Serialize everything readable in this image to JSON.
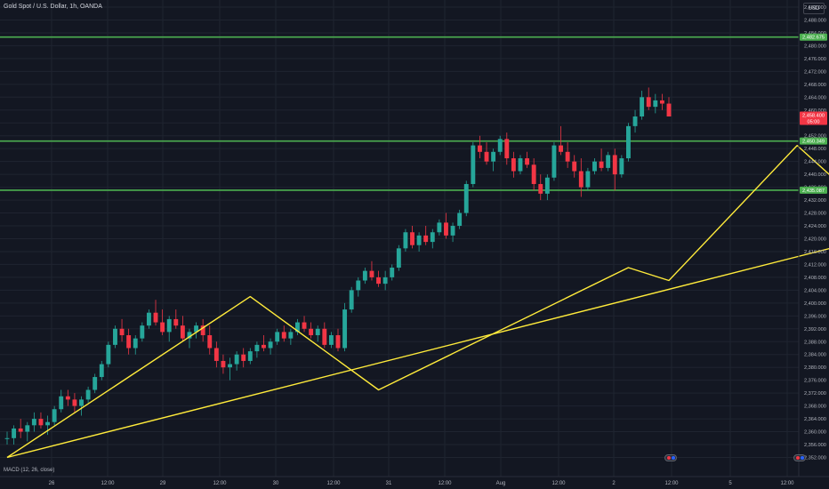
{
  "header": {
    "title": "Gold Spot / U.S. Dollar, 1h, OANDA",
    "currency": "USD"
  },
  "indicator": {
    "label": "MACD (12, 26, close)"
  },
  "colors": {
    "background": "#131722",
    "grid": "#1f2430",
    "up": "#26a69a",
    "down": "#f23645",
    "level_line": "#4caf50",
    "drawing": "#ffeb3b",
    "axis_text": "#b2b5be"
  },
  "chart_data": {
    "type": "candlestick",
    "symbol": "Gold Spot / U.S. Dollar",
    "interval": "1h",
    "source": "OANDA",
    "y_axis": {
      "position": "right",
      "ylim": [
        2349,
        2493
      ],
      "ticks": [
        "2,492.000",
        "2,488.000",
        "2,484.000",
        "2,480.000",
        "2,476.000",
        "2,472.000",
        "2,468.000",
        "2,464.000",
        "2,460.000",
        "2,456.000",
        "2,452.000",
        "2,448.000",
        "2,444.000",
        "2,440.000",
        "2,436.000",
        "2,432.000",
        "2,428.000",
        "2,424.000",
        "2,420.000",
        "2,416.000",
        "2,412.000",
        "2,408.000",
        "2,404.000",
        "2,400.000",
        "2,396.000",
        "2,392.000",
        "2,388.000",
        "2,384.000",
        "2,380.000",
        "2,376.000",
        "2,372.000",
        "2,368.000",
        "2,364.000",
        "2,360.000",
        "2,356.000",
        "2,352.000"
      ]
    },
    "x_axis": {
      "ticks": [
        "26",
        "12:00",
        "29",
        "12:00",
        "30",
        "12:00",
        "31",
        "12:00",
        "Aug",
        "12:00",
        "2",
        "12:00",
        "5",
        "12:00"
      ]
    },
    "price_labels": [
      {
        "value": 2482.675,
        "text": "2,482.675",
        "color": "#4caf50"
      },
      {
        "value": 2458.4,
        "text": "2,458.400",
        "color": "#f23645",
        "subtext": "05:00"
      },
      {
        "value": 2450.349,
        "text": "2,450.349",
        "color": "#4caf50"
      },
      {
        "value": 2435.087,
        "text": "2,435.087",
        "color": "#4caf50"
      }
    ],
    "horizontal_levels": [
      2482.675,
      2450.349,
      2435.087
    ],
    "candles": [
      [
        2358,
        2360,
        2356,
        2358
      ],
      [
        2358,
        2362,
        2356,
        2361
      ],
      [
        2361,
        2364,
        2358,
        2360
      ],
      [
        2360,
        2363,
        2357,
        2362
      ],
      [
        2362,
        2366,
        2360,
        2364
      ],
      [
        2364,
        2366,
        2361,
        2362
      ],
      [
        2362,
        2365,
        2359,
        2363
      ],
      [
        2363,
        2368,
        2362,
        2367
      ],
      [
        2367,
        2373,
        2366,
        2371
      ],
      [
        2371,
        2373,
        2368,
        2370
      ],
      [
        2370,
        2372,
        2366,
        2368
      ],
      [
        2368,
        2371,
        2365,
        2370
      ],
      [
        2370,
        2374,
        2369,
        2373
      ],
      [
        2373,
        2378,
        2372,
        2377
      ],
      [
        2377,
        2382,
        2376,
        2381
      ],
      [
        2381,
        2388,
        2380,
        2387
      ],
      [
        2387,
        2393,
        2386,
        2392
      ],
      [
        2392,
        2395,
        2388,
        2390
      ],
      [
        2390,
        2392,
        2384,
        2386
      ],
      [
        2386,
        2390,
        2384,
        2389
      ],
      [
        2389,
        2394,
        2388,
        2393
      ],
      [
        2393,
        2398,
        2392,
        2397
      ],
      [
        2397,
        2401,
        2393,
        2394
      ],
      [
        2394,
        2398,
        2390,
        2391
      ],
      [
        2391,
        2396,
        2388,
        2395
      ],
      [
        2395,
        2398,
        2392,
        2393
      ],
      [
        2393,
        2396,
        2388,
        2389
      ],
      [
        2389,
        2392,
        2386,
        2391
      ],
      [
        2391,
        2394,
        2389,
        2393
      ],
      [
        2393,
        2395,
        2388,
        2390
      ],
      [
        2390,
        2393,
        2384,
        2386
      ],
      [
        2386,
        2388,
        2380,
        2382
      ],
      [
        2382,
        2384,
        2378,
        2380
      ],
      [
        2380,
        2383,
        2376,
        2381
      ],
      [
        2381,
        2385,
        2379,
        2384
      ],
      [
        2384,
        2386,
        2380,
        2382
      ],
      [
        2382,
        2386,
        2381,
        2385
      ],
      [
        2385,
        2388,
        2383,
        2387
      ],
      [
        2387,
        2390,
        2385,
        2386
      ],
      [
        2386,
        2389,
        2384,
        2388
      ],
      [
        2388,
        2392,
        2387,
        2391
      ],
      [
        2391,
        2393,
        2388,
        2389
      ],
      [
        2389,
        2392,
        2387,
        2391
      ],
      [
        2391,
        2395,
        2390,
        2394
      ],
      [
        2394,
        2396,
        2391,
        2392
      ],
      [
        2392,
        2394,
        2389,
        2390
      ],
      [
        2390,
        2393,
        2388,
        2392
      ],
      [
        2392,
        2394,
        2386,
        2387
      ],
      [
        2387,
        2391,
        2386,
        2390
      ],
      [
        2390,
        2392,
        2385,
        2386
      ],
      [
        2386,
        2400,
        2385,
        2398
      ],
      [
        2398,
        2405,
        2397,
        2404
      ],
      [
        2404,
        2408,
        2402,
        2407
      ],
      [
        2407,
        2411,
        2406,
        2410
      ],
      [
        2410,
        2413,
        2407,
        2408
      ],
      [
        2408,
        2410,
        2405,
        2406
      ],
      [
        2406,
        2410,
        2404,
        2408
      ],
      [
        2408,
        2412,
        2407,
        2411
      ],
      [
        2411,
        2418,
        2410,
        2417
      ],
      [
        2417,
        2423,
        2416,
        2422
      ],
      [
        2422,
        2424,
        2417,
        2418
      ],
      [
        2418,
        2422,
        2416,
        2421
      ],
      [
        2421,
        2424,
        2418,
        2419
      ],
      [
        2419,
        2423,
        2417,
        2422
      ],
      [
        2422,
        2426,
        2421,
        2425
      ],
      [
        2425,
        2428,
        2420,
        2421
      ],
      [
        2421,
        2425,
        2419,
        2424
      ],
      [
        2424,
        2429,
        2423,
        2428
      ],
      [
        2428,
        2438,
        2427,
        2437
      ],
      [
        2437,
        2450,
        2436,
        2449
      ],
      [
        2449,
        2452,
        2445,
        2447
      ],
      [
        2447,
        2450,
        2443,
        2444
      ],
      [
        2444,
        2448,
        2441,
        2447
      ],
      [
        2447,
        2452,
        2446,
        2451
      ],
      [
        2451,
        2453,
        2443,
        2445
      ],
      [
        2445,
        2447,
        2439,
        2441
      ],
      [
        2441,
        2446,
        2440,
        2445
      ],
      [
        2445,
        2447,
        2442,
        2443
      ],
      [
        2443,
        2445,
        2435,
        2437
      ],
      [
        2437,
        2440,
        2432,
        2434
      ],
      [
        2434,
        2440,
        2432,
        2439
      ],
      [
        2439,
        2450,
        2438,
        2449
      ],
      [
        2449,
        2455,
        2446,
        2447
      ],
      [
        2447,
        2450,
        2442,
        2444
      ],
      [
        2444,
        2446,
        2439,
        2441
      ],
      [
        2441,
        2445,
        2433,
        2436
      ],
      [
        2436,
        2442,
        2435,
        2441
      ],
      [
        2441,
        2445,
        2440,
        2444
      ],
      [
        2444,
        2448,
        2441,
        2442
      ],
      [
        2442,
        2447,
        2441,
        2446
      ],
      [
        2446,
        2448,
        2435,
        2440
      ],
      [
        2440,
        2446,
        2439,
        2445
      ],
      [
        2445,
        2456,
        2444,
        2455
      ],
      [
        2455,
        2460,
        2453,
        2458
      ],
      [
        2458,
        2466,
        2457,
        2464
      ],
      [
        2464,
        2467,
        2460,
        2461
      ],
      [
        2461,
        2465,
        2459,
        2463
      ],
      [
        2463,
        2465,
        2460,
        2462
      ],
      [
        2462,
        2464,
        2458,
        2458
      ]
    ],
    "drawings": [
      {
        "type": "polyline",
        "name": "zigzag",
        "points": [
          [
            0,
            2352
          ],
          [
            36,
            2402
          ],
          [
            55,
            2373
          ],
          [
            92,
            2411
          ],
          [
            98,
            2407
          ],
          [
            117,
            2449
          ],
          [
            127,
            2430
          ],
          [
            134,
            2454
          ],
          [
            140,
            2434
          ],
          [
            150,
            2466
          ],
          [
            160,
            2449
          ]
        ]
      },
      {
        "type": "trendline",
        "name": "rising-support",
        "points": [
          [
            0,
            2352
          ],
          [
            210,
            2464
          ]
        ]
      },
      {
        "type": "arrow",
        "name": "projection-arrow",
        "points": [
          [
            160,
            2449
          ],
          [
            183,
            2490
          ]
        ]
      }
    ]
  }
}
